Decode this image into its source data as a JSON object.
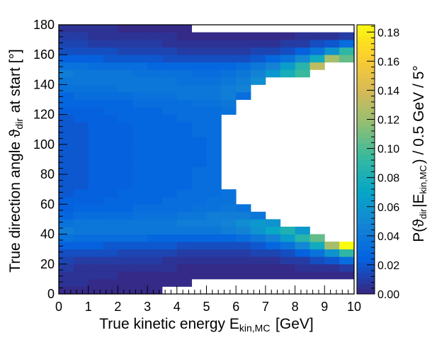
{
  "chart_data": {
    "type": "heatmap",
    "xlabel": "True kinetic energy E_{kin,MC} [GeV]",
    "ylabel": "True direction angle ϑ_{dir} at start [°]",
    "zlabel": "P(ϑ_{dir}|E_{kin,MC}) / 0.5 GeV / 5°",
    "xlim": [
      0,
      10
    ],
    "ylim": [
      0,
      180
    ],
    "zlim": [
      0,
      0.185
    ],
    "x_bin_width": 0.5,
    "y_bin_width": 5,
    "x_ticks": [
      "0",
      "1",
      "2",
      "3",
      "4",
      "5",
      "6",
      "7",
      "8",
      "9",
      "10"
    ],
    "y_ticks": [
      "0",
      "20",
      "40",
      "60",
      "80",
      "100",
      "120",
      "140",
      "160",
      "180"
    ],
    "z_ticks": [
      "0.00",
      "0.02",
      "0.04",
      "0.06",
      "0.08",
      "0.10",
      "0.12",
      "0.14",
      "0.16",
      "0.18"
    ],
    "colormap": [
      "#352a87",
      "#0363e1",
      "#1485d4",
      "#06a7c6",
      "#38b99e",
      "#92bf73",
      "#d9ba56",
      "#fcce2e",
      "#f9fb0e"
    ],
    "x_bins": [
      0.25,
      0.75,
      1.25,
      1.75,
      2.25,
      2.75,
      3.25,
      3.75,
      4.25,
      4.75,
      5.25,
      5.75,
      6.25,
      6.75,
      7.25,
      7.75,
      8.25,
      8.75,
      9.25,
      9.75
    ],
    "y_bins": [
      2.5,
      7.5,
      12.5,
      17.5,
      22.5,
      27.5,
      32.5,
      37.5,
      42.5,
      47.5,
      52.5,
      57.5,
      62.5,
      67.5,
      72.5,
      77.5,
      82.5,
      87.5,
      92.5,
      97.5,
      102.5,
      107.5,
      112.5,
      117.5,
      122.5,
      127.5,
      132.5,
      137.5,
      142.5,
      147.5,
      152.5,
      157.5,
      162.5,
      167.5,
      172.5,
      177.5
    ],
    "z": [
      [
        0.003,
        0.004,
        0.006,
        0.008,
        0.012,
        0.017,
        0.024,
        0.034,
        0.041,
        0.036,
        0.029,
        0.025,
        0.023,
        0.022,
        0.022,
        0.022,
        0.022,
        0.021,
        0.021,
        0.021,
        0.021,
        0.021,
        0.022,
        0.022,
        0.023,
        0.026,
        0.029,
        0.034,
        0.04,
        0.041,
        0.035,
        0.024,
        0.017,
        0.012,
        0.008,
        0.005
      ],
      [
        0.003,
        0.004,
        0.005,
        0.007,
        0.011,
        0.016,
        0.024,
        0.033,
        0.04,
        0.037,
        0.03,
        0.026,
        0.024,
        0.023,
        0.022,
        0.022,
        0.022,
        0.022,
        0.022,
        0.022,
        0.022,
        0.022,
        0.022,
        0.023,
        0.024,
        0.027,
        0.03,
        0.035,
        0.04,
        0.04,
        0.034,
        0.024,
        0.017,
        0.012,
        0.008,
        0.005
      ],
      [
        0.002,
        0.003,
        0.004,
        0.007,
        0.01,
        0.016,
        0.023,
        0.032,
        0.04,
        0.037,
        0.031,
        0.027,
        0.025,
        0.024,
        0.023,
        0.023,
        0.023,
        0.023,
        0.023,
        0.023,
        0.023,
        0.023,
        0.023,
        0.024,
        0.025,
        0.027,
        0.031,
        0.035,
        0.039,
        0.039,
        0.033,
        0.023,
        0.016,
        0.011,
        0.007,
        0.004
      ],
      [
        0.002,
        0.003,
        0.004,
        0.006,
        0.01,
        0.015,
        0.022,
        0.032,
        0.039,
        0.038,
        0.032,
        0.028,
        0.026,
        0.025,
        0.024,
        0.024,
        0.024,
        0.024,
        0.024,
        0.024,
        0.024,
        0.024,
        0.024,
        0.025,
        0.026,
        0.028,
        0.032,
        0.036,
        0.039,
        0.038,
        0.032,
        0.022,
        0.015,
        0.01,
        0.006,
        0.004
      ],
      [
        0.001,
        0.002,
        0.003,
        0.005,
        0.009,
        0.014,
        0.021,
        0.031,
        0.039,
        0.039,
        0.033,
        0.029,
        0.027,
        0.026,
        0.025,
        0.025,
        0.025,
        0.025,
        0.025,
        0.025,
        0.025,
        0.025,
        0.025,
        0.026,
        0.027,
        0.029,
        0.033,
        0.037,
        0.038,
        0.037,
        0.031,
        0.021,
        0.014,
        0.009,
        0.005,
        0.003
      ],
      [
        0.001,
        0.002,
        0.003,
        0.005,
        0.008,
        0.013,
        0.02,
        0.03,
        0.038,
        0.039,
        0.034,
        0.03,
        0.028,
        0.027,
        0.026,
        0.026,
        0.026,
        0.026,
        0.026,
        0.026,
        0.026,
        0.026,
        0.026,
        0.027,
        0.028,
        0.03,
        0.034,
        0.037,
        0.038,
        0.036,
        0.03,
        0.02,
        0.013,
        0.008,
        0.005,
        0.002
      ],
      [
        0.001,
        0.001,
        0.002,
        0.004,
        0.008,
        0.013,
        0.02,
        0.029,
        0.038,
        0.04,
        0.035,
        0.031,
        0.029,
        0.028,
        0.027,
        0.027,
        0.027,
        0.026,
        0.026,
        0.026,
        0.026,
        0.027,
        0.027,
        0.028,
        0.029,
        0.031,
        0.035,
        0.038,
        0.037,
        0.036,
        0.029,
        0.019,
        0.013,
        0.008,
        0.004,
        0.002
      ],
      [
        0.0,
        0.001,
        0.002,
        0.004,
        0.007,
        0.012,
        0.019,
        0.028,
        0.037,
        0.04,
        0.036,
        0.032,
        0.03,
        0.029,
        0.028,
        0.028,
        0.027,
        0.027,
        0.027,
        0.027,
        0.027,
        0.028,
        0.028,
        0.029,
        0.03,
        0.032,
        0.036,
        0.038,
        0.037,
        0.035,
        0.028,
        0.018,
        0.012,
        0.007,
        0.004,
        0.001
      ],
      [
        0.0,
        0.001,
        0.001,
        0.003,
        0.006,
        0.011,
        0.018,
        0.027,
        0.037,
        0.041,
        0.037,
        0.033,
        0.031,
        0.03,
        0.029,
        0.029,
        0.028,
        0.028,
        0.028,
        0.028,
        0.028,
        0.029,
        0.029,
        0.03,
        0.031,
        0.033,
        0.037,
        0.039,
        0.036,
        0.034,
        0.027,
        0.018,
        0.011,
        0.006,
        0.003,
        0.001
      ],
      [
        0.0,
        0.0,
        0.001,
        0.003,
        0.006,
        0.01,
        0.018,
        0.027,
        0.037,
        0.042,
        0.039,
        0.035,
        0.033,
        0.032,
        0.031,
        0.03,
        0.03,
        0.029,
        0.029,
        0.029,
        0.029,
        0.03,
        0.03,
        0.031,
        0.032,
        0.035,
        0.038,
        0.039,
        0.036,
        0.033,
        0.026,
        0.017,
        0.01,
        0.006,
        0.003,
        0.0
      ],
      [
        0.0,
        0.0,
        0.001,
        0.002,
        0.005,
        0.01,
        0.017,
        0.027,
        0.038,
        0.044,
        0.041,
        0.036,
        0.034,
        0.033,
        0.032,
        0.031,
        0.031,
        0.03,
        0.03,
        0.03,
        0.03,
        0.031,
        0.031,
        0.032,
        0.033,
        0.036,
        0.04,
        0.04,
        0.036,
        0.032,
        0.026,
        0.017,
        0.01,
        0.005,
        0.002,
        0.0
      ],
      [
        0.0,
        0.0,
        0.001,
        0.002,
        0.005,
        0.01,
        0.017,
        0.028,
        0.041,
        0.048,
        0.043,
        0.037,
        0.035,
        0.034,
        0.0,
        0.0,
        0.0,
        0.0,
        0.0,
        0.0,
        0.0,
        0.0,
        0.0,
        0.0,
        0.035,
        0.038,
        0.043,
        0.043,
        0.038,
        0.034,
        0.028,
        0.017,
        0.01,
        0.005,
        0.002,
        0.0
      ],
      [
        0.0,
        0.0,
        0.001,
        0.002,
        0.005,
        0.01,
        0.018,
        0.031,
        0.046,
        0.054,
        0.044,
        0.034,
        0.0,
        0.0,
        0.0,
        0.0,
        0.0,
        0.0,
        0.0,
        0.0,
        0.0,
        0.0,
        0.0,
        0.0,
        0.0,
        0.0,
        0.031,
        0.048,
        0.044,
        0.038,
        0.031,
        0.018,
        0.01,
        0.005,
        0.002,
        0.0
      ],
      [
        0.0,
        0.0,
        0.001,
        0.002,
        0.006,
        0.012,
        0.021,
        0.037,
        0.057,
        0.062,
        0.038,
        0.0,
        0.0,
        0.0,
        0.0,
        0.0,
        0.0,
        0.0,
        0.0,
        0.0,
        0.0,
        0.0,
        0.0,
        0.0,
        0.0,
        0.0,
        0.0,
        0.0,
        0.052,
        0.048,
        0.037,
        0.021,
        0.012,
        0.006,
        0.002,
        0.0
      ],
      [
        0.0,
        0.0,
        0.001,
        0.002,
        0.007,
        0.014,
        0.026,
        0.047,
        0.072,
        0.058,
        0.0,
        0.0,
        0.0,
        0.0,
        0.0,
        0.0,
        0.0,
        0.0,
        0.0,
        0.0,
        0.0,
        0.0,
        0.0,
        0.0,
        0.0,
        0.0,
        0.0,
        0.0,
        0.0,
        0.062,
        0.047,
        0.026,
        0.014,
        0.007,
        0.002,
        0.0
      ],
      [
        0.0,
        0.0,
        0.001,
        0.003,
        0.009,
        0.018,
        0.034,
        0.063,
        0.085,
        0.0,
        0.0,
        0.0,
        0.0,
        0.0,
        0.0,
        0.0,
        0.0,
        0.0,
        0.0,
        0.0,
        0.0,
        0.0,
        0.0,
        0.0,
        0.0,
        0.0,
        0.0,
        0.0,
        0.0,
        0.08,
        0.063,
        0.034,
        0.018,
        0.009,
        0.003,
        0.0
      ],
      [
        0.0,
        0.0,
        0.001,
        0.004,
        0.011,
        0.025,
        0.049,
        0.088,
        0.061,
        0.0,
        0.0,
        0.0,
        0.0,
        0.0,
        0.0,
        0.0,
        0.0,
        0.0,
        0.0,
        0.0,
        0.0,
        0.0,
        0.0,
        0.0,
        0.0,
        0.0,
        0.0,
        0.0,
        0.0,
        0.096,
        0.088,
        0.049,
        0.025,
        0.011,
        0.004,
        0.0
      ],
      [
        0.0,
        0.0,
        0.002,
        0.005,
        0.015,
        0.036,
        0.077,
        0.105,
        0.0,
        0.0,
        0.0,
        0.0,
        0.0,
        0.0,
        0.0,
        0.0,
        0.0,
        0.0,
        0.0,
        0.0,
        0.0,
        0.0,
        0.0,
        0.0,
        0.0,
        0.0,
        0.0,
        0.0,
        0.0,
        0.0,
        0.131,
        0.077,
        0.036,
        0.015,
        0.005,
        0.0
      ],
      [
        0.0,
        0.0,
        0.002,
        0.006,
        0.021,
        0.056,
        0.124,
        0.0,
        0.0,
        0.0,
        0.0,
        0.0,
        0.0,
        0.0,
        0.0,
        0.0,
        0.0,
        0.0,
        0.0,
        0.0,
        0.0,
        0.0,
        0.0,
        0.0,
        0.0,
        0.0,
        0.0,
        0.0,
        0.0,
        0.0,
        0.0,
        0.124,
        0.056,
        0.021,
        0.006,
        0.0
      ],
      [
        0.0,
        0.0,
        0.002,
        0.008,
        0.03,
        0.09,
        0.185,
        0.0,
        0.0,
        0.0,
        0.0,
        0.0,
        0.0,
        0.0,
        0.0,
        0.0,
        0.0,
        0.0,
        0.0,
        0.0,
        0.0,
        0.0,
        0.0,
        0.0,
        0.0,
        0.0,
        0.0,
        0.0,
        0.0,
        0.0,
        0.0,
        0.105,
        0.09,
        0.03,
        0.008,
        0.0
      ]
    ]
  }
}
